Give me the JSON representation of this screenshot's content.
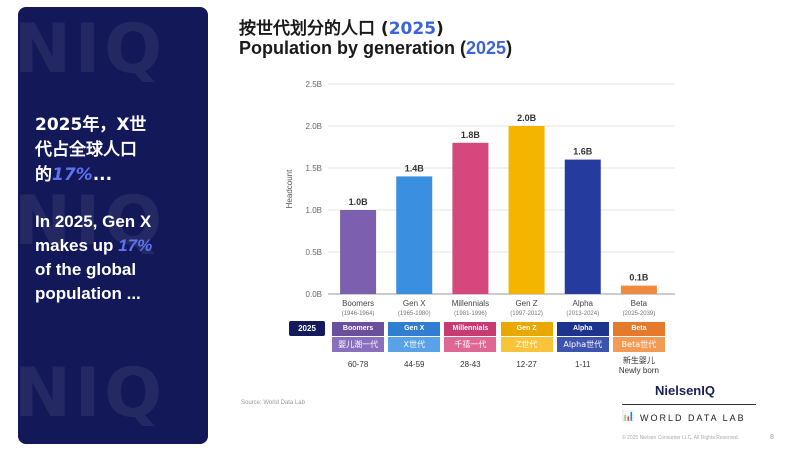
{
  "panel": {
    "watermark_rows": [
      "NIQ",
      "NIQ",
      "NIQ"
    ],
    "text_cn_line1": "2025年，X世",
    "text_cn_line2": "代占全球人口",
    "text_cn_line3_prefix": "的",
    "text_cn_highlight": "17%",
    "text_cn_suffix": "...",
    "text_en_line1": "In 2025, Gen X",
    "text_en_line2_prefix": "makes up ",
    "text_en_highlight": "17%",
    "text_en_line3": "of the global",
    "text_en_line4": "population ..."
  },
  "header": {
    "title_cn": "按世代划分的人口",
    "title_en": "Population by generation",
    "year": "2025"
  },
  "chart_data": {
    "type": "bar",
    "title": "Population by generation (2025)",
    "ylabel": "Headcount",
    "ylim": [
      0,
      2.5
    ],
    "yticks": [
      "0.0B",
      "0.5B",
      "1.0B",
      "1.5B",
      "2.0B",
      "2.5B"
    ],
    "ytick_values": [
      0,
      0.5,
      1.0,
      1.5,
      2.0,
      2.5
    ],
    "categories": [
      "Boomers",
      "Gen X",
      "Millennials",
      "Gen Z",
      "Alpha",
      "Beta"
    ],
    "category_years": [
      "(1946-1964)",
      "(1965-1980)",
      "(1981-1996)",
      "(1997-2012)",
      "(2013-2024)",
      "(2025-2039)"
    ],
    "values": [
      1.0,
      1.4,
      1.8,
      2.0,
      1.6,
      0.1
    ],
    "value_labels": [
      "1.0B",
      "1.4B",
      "1.8B",
      "2.0B",
      "1.6B",
      "0.1B"
    ],
    "colors": [
      "#7c5fae",
      "#3b8fe0",
      "#d4487e",
      "#f5b400",
      "#253c9e",
      "#f08a3e"
    ]
  },
  "table": {
    "year_label": "2025",
    "headers": [
      "Boomers",
      "Gen X",
      "Millennials",
      "Gen Z",
      "Alpha",
      "Beta"
    ],
    "cn_names": [
      "婴儿潮一代",
      "X世代",
      "千禧一代",
      "Z世代",
      "Alpha世代",
      "Beta世代"
    ],
    "ages": [
      "60-78",
      "44-59",
      "28-43",
      "12-27",
      "1-11",
      "新生婴儿"
    ],
    "age_extra": "Newly born",
    "header_colors": [
      "#6a4f9c",
      "#2f7ed0",
      "#c63c70",
      "#e8a800",
      "#1e338c",
      "#e57a2c"
    ],
    "cn_colors": [
      "#8a6fbd",
      "#5aa2e8",
      "#de6793",
      "#f8c43a",
      "#3d53b0",
      "#f39b55"
    ]
  },
  "footer": {
    "source": "Source: World Data Lab",
    "brand_niq": "NielsenIQ",
    "brand_wdl": "WORLD DATA LAB",
    "copyright": "© 2025 Nielsen Consumer LLC. All Rights Reserved.",
    "page": "8"
  }
}
